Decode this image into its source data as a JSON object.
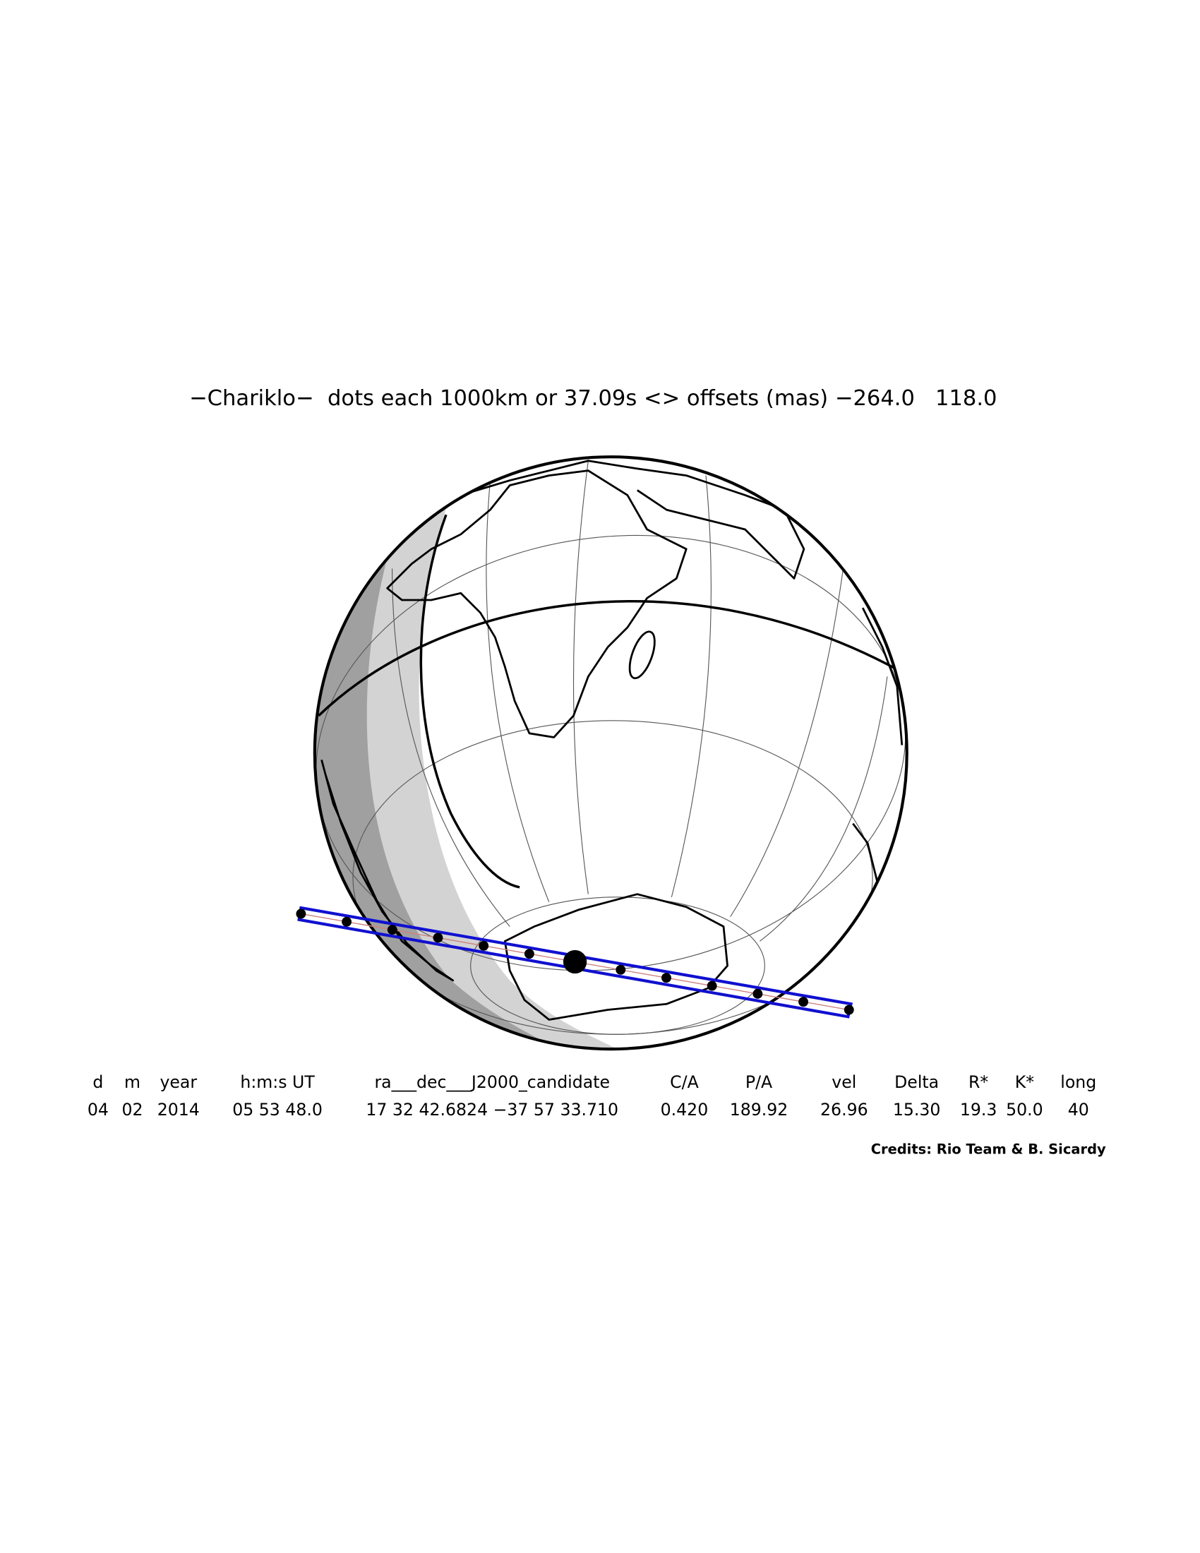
{
  "title": "−Chariklo−  dots each 1000km or 37.09s <> offsets (mas) −264.0   118.0",
  "table": {
    "header": [
      "d",
      "m",
      "year",
      "h:m:s UT",
      "ra___dec___J2000_candidate",
      "C/A",
      "P/A",
      "vel",
      "Delta",
      "R*",
      "K*",
      "long"
    ],
    "rows": [
      [
        "04",
        "02",
        "2014",
        "05 53 48.0",
        "17 32 42.6824 −37 57 33.710",
        "0.420",
        "189.92",
        "26.96",
        "15.30",
        "19.3",
        "50.0",
        "40"
      ]
    ]
  },
  "credits": "Credits: Rio Team & B. Sicardy"
}
